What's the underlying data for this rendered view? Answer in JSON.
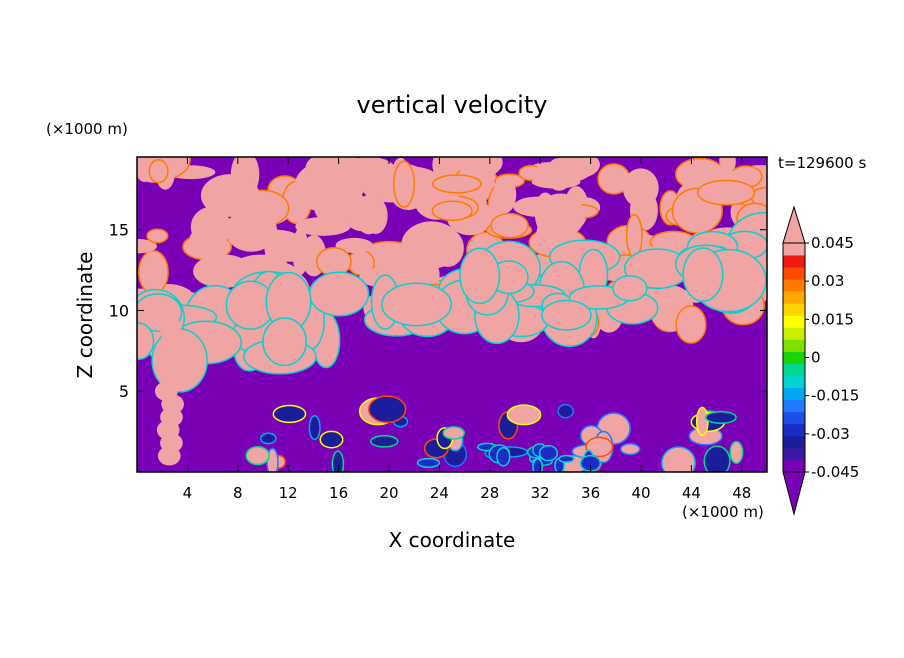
{
  "chart_data": {
    "type": "heatmap",
    "title": "vertical velocity",
    "time_label": "t=129600 s",
    "xlabel": "X coordinate",
    "ylabel": "Z coordinate",
    "x_unit": "(×1000 m)",
    "y_unit": "(×1000 m)",
    "xlim": [
      0,
      50
    ],
    "ylim": [
      0,
      19.5
    ],
    "x_ticks": [
      4,
      8,
      12,
      16,
      20,
      24,
      28,
      32,
      36,
      40,
      44,
      48
    ],
    "y_ticks": [
      5,
      10,
      15
    ],
    "colorbar": {
      "levels": [
        -0.05,
        -0.045,
        -0.04,
        -0.035,
        -0.03,
        -0.025,
        -0.02,
        -0.015,
        -0.01,
        -0.005,
        0,
        0.005,
        0.01,
        0.015,
        0.02,
        0.025,
        0.03,
        0.035,
        0.04,
        0.045,
        0.05
      ],
      "tick_labels": [
        "0.045",
        "0.03",
        "0.015",
        "0",
        "-0.015",
        "-0.03",
        "-0.045"
      ],
      "tick_values": [
        0.045,
        0.03,
        0.015,
        0,
        -0.015,
        -0.03,
        -0.045
      ],
      "colors": [
        "#7a00b8",
        "#3b18a8",
        "#1c1d9a",
        "#1a2cc8",
        "#1e4ee8",
        "#1f78ff",
        "#00a8f0",
        "#00d3d0",
        "#00d890",
        "#18d400",
        "#80e000",
        "#c8f000",
        "#ffff00",
        "#ffd400",
        "#ffa800",
        "#ff7a00",
        "#ff4a00",
        "#f01a10",
        "#f0a4a4"
      ],
      "under_color": "#7a00b8",
      "over_color": "#f0a4a4"
    }
  }
}
